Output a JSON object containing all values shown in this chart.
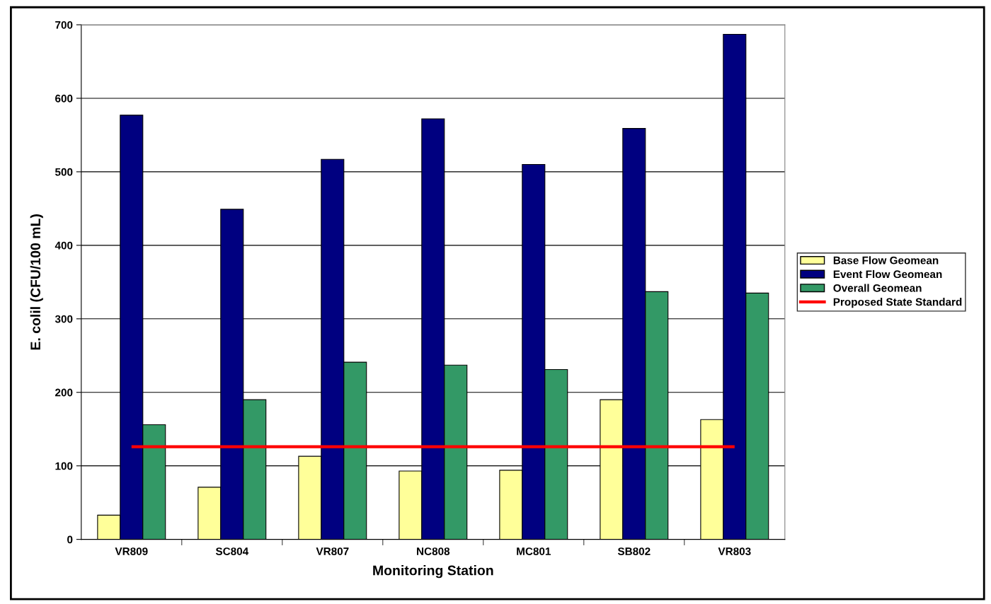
{
  "chart_data": {
    "type": "bar",
    "xlabel": "Monitoring Station",
    "ylabel": "E. colil (CFU/100 mL)",
    "categories": [
      "VR809",
      "SC804",
      "VR807",
      "NC808",
      "MC801",
      "SB802",
      "VR803"
    ],
    "series": [
      {
        "name": "Base Flow Geomean",
        "color": "#ffff99",
        "values": [
          33,
          71,
          113,
          93,
          94,
          190,
          163
        ]
      },
      {
        "name": "Event Flow Geomean",
        "color": "#000080",
        "values": [
          577,
          449,
          517,
          572,
          510,
          559,
          687
        ]
      },
      {
        "name": "Overall Geomean",
        "color": "#339966",
        "values": [
          156,
          190,
          241,
          237,
          231,
          337,
          335
        ]
      },
      {
        "name": "Proposed State Standard",
        "type": "line",
        "color": "#ff0000",
        "values": [
          126,
          126,
          126,
          126,
          126,
          126,
          126
        ]
      }
    ],
    "ylim": [
      0,
      700
    ],
    "yticks": [
      0,
      100,
      200,
      300,
      400,
      500,
      600,
      700
    ],
    "grid": "y",
    "legend": "right",
    "marker": "none",
    "line_style": "solid"
  }
}
